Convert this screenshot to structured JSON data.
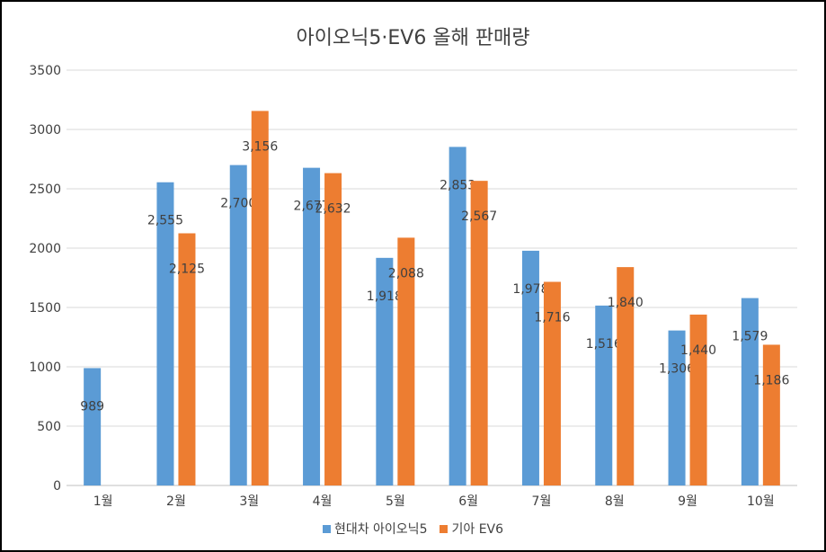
{
  "chart_data": {
    "type": "bar",
    "title": "아이오닉5·EV6 올해 판매량",
    "categories": [
      "1월",
      "2월",
      "3월",
      "4월",
      "5월",
      "6월",
      "7월",
      "8월",
      "9월",
      "10월"
    ],
    "series": [
      {
        "name": "현대차 아이오닉5",
        "color": "#5b9bd5",
        "values": [
          989,
          2555,
          2700,
          2677,
          1918,
          2853,
          1978,
          1516,
          1306,
          1579
        ],
        "labels": [
          "989",
          "2,555",
          "2,700",
          "2,677",
          "1,918",
          "2,853",
          "1,978",
          "1,516",
          "1,306",
          "1,579"
        ]
      },
      {
        "name": "기아 EV6",
        "color": "#ed7d31",
        "values": [
          null,
          2125,
          3156,
          2632,
          2088,
          2567,
          1716,
          1840,
          1440,
          1186
        ],
        "labels": [
          null,
          "2,125",
          "3,156",
          "2,632",
          "2,088",
          "2,567",
          "1,716",
          "1,840",
          "1,440",
          "1,186"
        ]
      }
    ],
    "ylim": [
      0,
      3500
    ],
    "yticks": [
      "0",
      "500",
      "1000",
      "1500",
      "2000",
      "2500",
      "3000",
      "3500"
    ],
    "grid": true,
    "legend_position": "bottom"
  }
}
